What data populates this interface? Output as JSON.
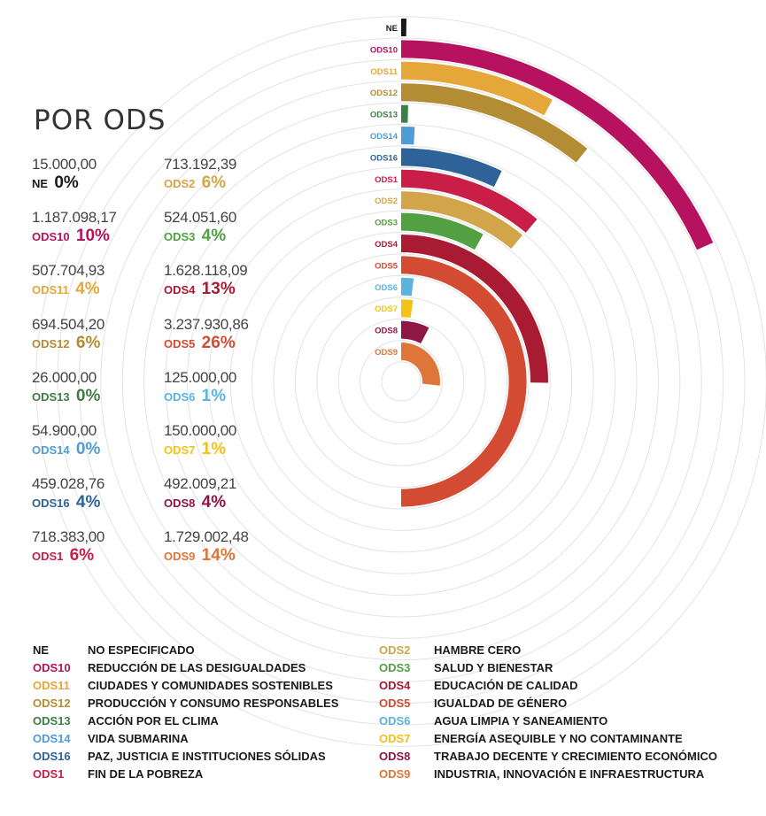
{
  "title": "POR ODS",
  "chart_data": {
    "type": "radial-bar",
    "title": "POR ODS",
    "items": [
      {
        "code": "NE",
        "amount": "15.000,00",
        "percent": "0%",
        "value": 15000.0,
        "color": "#1a1a1a"
      },
      {
        "code": "ODS10",
        "amount": "1.187.098,17",
        "percent": "10%",
        "value": 1187098.17,
        "color": "#B7125F"
      },
      {
        "code": "ODS11",
        "amount": "507.704,93",
        "percent": "4%",
        "value": 507704.93,
        "color": "#E5A63A"
      },
      {
        "code": "ODS12",
        "amount": "694.504,20",
        "percent": "6%",
        "value": 694504.2,
        "color": "#B38C34"
      },
      {
        "code": "ODS13",
        "amount": "26.000,00",
        "percent": "0%",
        "value": 26000.0,
        "color": "#3F7E44"
      },
      {
        "code": "ODS14",
        "amount": "54.900,00",
        "percent": "0%",
        "value": 54900.0,
        "color": "#4F9CD6"
      },
      {
        "code": "ODS16",
        "amount": "459.028,76",
        "percent": "4%",
        "value": 459028.76,
        "color": "#2F6298"
      },
      {
        "code": "ODS1",
        "amount": "718.383,00",
        "percent": "6%",
        "value": 718383.0,
        "color": "#C81E47"
      },
      {
        "code": "ODS2",
        "amount": "713.192,39",
        "percent": "6%",
        "value": 713192.39,
        "color": "#D3A54A"
      },
      {
        "code": "ODS3",
        "amount": "524.051,60",
        "percent": "4%",
        "value": 524051.6,
        "color": "#53A043"
      },
      {
        "code": "ODS4",
        "amount": "1.628.118,09",
        "percent": "13%",
        "value": 1628118.09,
        "color": "#A81B32"
      },
      {
        "code": "ODS5",
        "amount": "3.237.930,86",
        "percent": "26%",
        "value": 3237930.86,
        "color": "#D24B32"
      },
      {
        "code": "ODS6",
        "amount": "125.000,00",
        "percent": "1%",
        "value": 125000.0,
        "color": "#5BB4E0"
      },
      {
        "code": "ODS7",
        "amount": "150.000,00",
        "percent": "1%",
        "value": 150000.0,
        "color": "#F2C218"
      },
      {
        "code": "ODS8",
        "amount": "492.009,21",
        "percent": "4%",
        "value": 492009.21,
        "color": "#8E1744"
      },
      {
        "code": "ODS9",
        "amount": "1.729.002,48",
        "percent": "14%",
        "value": 1729002.48,
        "color": "#DD7638"
      }
    ]
  },
  "legend": [
    {
      "code": "NE",
      "name": "NO ESPECIFICADO",
      "color": "#1a1a1a"
    },
    {
      "code": "ODS10",
      "name": "REDUCCIÓN DE LAS DESIGUALDADES",
      "color": "#B7125F"
    },
    {
      "code": "ODS11",
      "name": "CIUDADES Y COMUNIDADES SOSTENIBLES",
      "color": "#E5A63A"
    },
    {
      "code": "ODS12",
      "name": "PRODUCCIÓN Y CONSUMO RESPONSABLES",
      "color": "#B38C34"
    },
    {
      "code": "ODS13",
      "name": "ACCIÓN POR EL CLIMA",
      "color": "#3F7E44"
    },
    {
      "code": "ODS14",
      "name": "VIDA SUBMARINA",
      "color": "#4F9CD6"
    },
    {
      "code": "ODS16",
      "name": "PAZ, JUSTICIA E INSTITUCIONES SÓLIDAS",
      "color": "#2F6298"
    },
    {
      "code": "ODS1",
      "name": "FIN DE LA POBREZA",
      "color": "#C81E47"
    },
    {
      "code": "ODS2",
      "name": "HAMBRE CERO",
      "color": "#D3A54A"
    },
    {
      "code": "ODS3",
      "name": "SALUD Y BIENESTAR",
      "color": "#53A043"
    },
    {
      "code": "ODS4",
      "name": "EDUCACIÓN DE CALIDAD",
      "color": "#A81B32"
    },
    {
      "code": "ODS5",
      "name": "IGUALDAD DE GÉNERO",
      "color": "#D24B32"
    },
    {
      "code": "ODS6",
      "name": "AGUA LIMPIA Y SANEAMIENTO",
      "color": "#5BB4E0"
    },
    {
      "code": "ODS7",
      "name": "ENERGÍA ASEQUIBLE Y NO CONTAMINANTE",
      "color": "#F2C218"
    },
    {
      "code": "ODS8",
      "name": "TRABAJO DECENTE Y CRECIMIENTO ECONÓMICO",
      "color": "#8E1744"
    },
    {
      "code": "ODS9",
      "name": "INDUSTRIA, INNOVACIÓN E INFRAESTRUCTURA",
      "color": "#DD7638"
    }
  ]
}
